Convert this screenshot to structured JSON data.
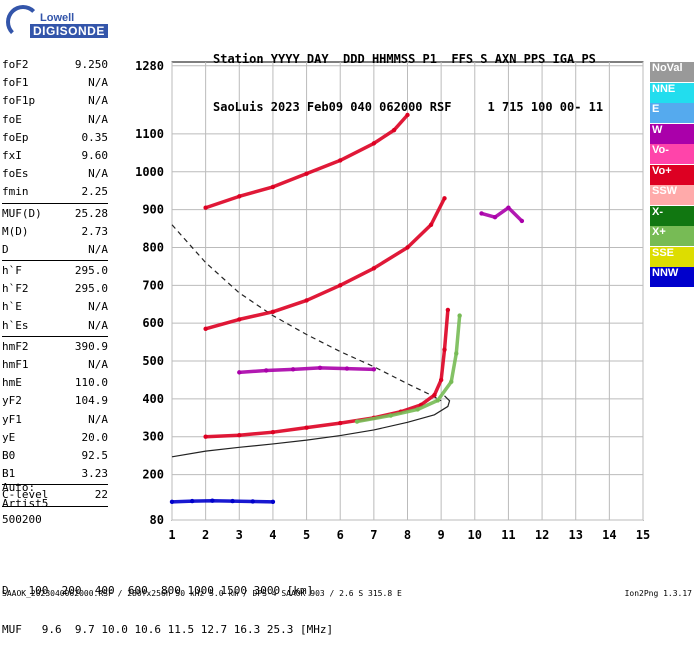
{
  "logo": {
    "line1": "Lowell",
    "line2": "DIGISONDE"
  },
  "header": {
    "line1": "Station YYYY DAY  DDD HHMMSS P1  FFS S AXN PPS IGA PS",
    "line2": "SaoLuis 2023 Feb09 040 062000 RSF     1 715 100 00- 11"
  },
  "params": [
    {
      "label": "foF2",
      "value": "9.250"
    },
    {
      "label": "foF1",
      "value": "N/A"
    },
    {
      "label": "foF1p",
      "value": "N/A"
    },
    {
      "label": "foE",
      "value": "N/A"
    },
    {
      "label": "foEp",
      "value": "0.35"
    },
    {
      "label": "fxI",
      "value": "9.60"
    },
    {
      "label": "foEs",
      "value": "N/A"
    },
    {
      "label": "fmin",
      "value": "2.25"
    },
    {
      "sep": true
    },
    {
      "label": "MUF(D)",
      "value": "25.28"
    },
    {
      "label": "M(D)",
      "value": "2.73"
    },
    {
      "label": "D",
      "value": "N/A"
    },
    {
      "sep": true
    },
    {
      "label": "h`F",
      "value": "295.0"
    },
    {
      "label": "h`F2",
      "value": "295.0"
    },
    {
      "label": "h`E",
      "value": "N/A"
    },
    {
      "label": "h`Es",
      "value": "N/A"
    },
    {
      "sep": true
    },
    {
      "label": "hmF2",
      "value": "390.9"
    },
    {
      "label": "hmF1",
      "value": "N/A"
    },
    {
      "label": "hmE",
      "value": "110.0"
    },
    {
      "label": "yF2",
      "value": "104.9"
    },
    {
      "label": "yF1",
      "value": "N/A"
    },
    {
      "label": "yE",
      "value": "20.0"
    },
    {
      "label": "B0",
      "value": "92.5"
    },
    {
      "label": "B1",
      "value": "3.23"
    },
    {
      "sep": true
    },
    {
      "label": "C-level",
      "value": "22"
    },
    {
      "sep": true
    }
  ],
  "auto": {
    "line1": "Auto:",
    "line2": "Artist5",
    "line3": "500200"
  },
  "legend": [
    {
      "label": "NoVal",
      "color": "#999999"
    },
    {
      "label": "NNE",
      "color": "#22ddee"
    },
    {
      "label": "E",
      "color": "#55aaee"
    },
    {
      "label": "W",
      "color": "#aa00aa"
    },
    {
      "label": "Vo-",
      "color": "#ff44aa"
    },
    {
      "label": "Vo+",
      "color": "#dd0022"
    },
    {
      "label": "SSW",
      "color": "#ffaaaa"
    },
    {
      "label": "X-",
      "color": "#117711"
    },
    {
      "label": "X+",
      "color": "#77bb55"
    },
    {
      "label": "SSE",
      "color": "#dddd00"
    },
    {
      "label": "NNW",
      "color": "#0000cc"
    }
  ],
  "muf_table": {
    "d_label": "D",
    "d_values": "100  200  400  600  800 1000 1500 3000 [km]",
    "muf_label": "MUF",
    "muf_values": "9.6  9.7 10.0 10.6 11.5 12.7 16.3 25.3 [MHz]"
  },
  "footer": "SAAOK_2023040062000.RSF / 280fx256h 50 kHz 5.0 km / DPS-4 SAAOK 903 / 2.6 S 315.8 E",
  "version": "Ion2Png 1.3.17",
  "chart_data": {
    "type": "scatter",
    "title": "",
    "xlabel": "",
    "ylabel": "",
    "xlim": [
      1,
      15
    ],
    "ylim": [
      80,
      1290
    ],
    "x_ticks": [
      1,
      2,
      3,
      4,
      5,
      6,
      7,
      8,
      9,
      10,
      11,
      12,
      13,
      14,
      15
    ],
    "y_ticks": [
      80,
      200,
      300,
      400,
      500,
      600,
      700,
      800,
      900,
      1000,
      1100,
      1280
    ],
    "grid": true,
    "series": [
      {
        "name": "Vo+",
        "color": "#dd0022",
        "x": [
          2.0,
          3.0,
          4.0,
          5.0,
          6.0,
          7.0,
          7.8,
          8.4,
          8.8,
          9.0,
          9.1,
          9.2
        ],
        "y": [
          300,
          304,
          312,
          324,
          336,
          350,
          366,
          384,
          410,
          450,
          530,
          635
        ]
      },
      {
        "name": "X+",
        "color": "#77bb55",
        "x": [
          6.5,
          7.5,
          8.3,
          8.9,
          9.3,
          9.45,
          9.55
        ],
        "y": [
          340,
          356,
          372,
          396,
          445,
          520,
          620
        ]
      },
      {
        "name": "Vo+",
        "color": "#dd0022",
        "x": [
          2.0,
          3.0,
          4.0,
          5.0,
          6.0,
          7.0,
          8.0,
          8.7,
          9.1
        ],
        "y": [
          585,
          610,
          630,
          660,
          700,
          745,
          800,
          860,
          930
        ]
      },
      {
        "name": "Vo+",
        "color": "#dd0022",
        "x": [
          2.0,
          3.0,
          4.0,
          5.0,
          6.0,
          7.0,
          7.6,
          8.0
        ],
        "y": [
          905,
          935,
          960,
          995,
          1030,
          1075,
          1110,
          1150
        ]
      },
      {
        "name": "W",
        "color": "#aa00aa",
        "x": [
          3.0,
          3.8,
          4.6,
          5.4,
          6.2,
          7.0
        ],
        "y": [
          470,
          475,
          478,
          482,
          480,
          478
        ]
      },
      {
        "name": "NNW",
        "color": "#0000cc",
        "x": [
          1.0,
          1.6,
          2.2,
          2.8,
          3.4,
          4.0
        ],
        "y": [
          128,
          130,
          131,
          130,
          129,
          128
        ]
      },
      {
        "name": "W",
        "color": "#aa00aa",
        "x": [
          10.2,
          10.6,
          11.0,
          11.4
        ],
        "y": [
          890,
          880,
          905,
          870
        ]
      }
    ],
    "reference_curves": [
      {
        "style": "dashed",
        "x": [
          1.0,
          2.0,
          3.0,
          4.0,
          5.0,
          6.0,
          7.0,
          8.0,
          8.7,
          9.0
        ],
        "y": [
          860,
          760,
          680,
          620,
          570,
          525,
          485,
          440,
          410,
          395
        ]
      },
      {
        "style": "solid",
        "x": [
          1.0,
          2.0,
          3.0,
          4.0,
          5.0,
          6.0,
          7.0,
          8.0,
          8.8,
          9.2,
          9.25,
          9.1
        ],
        "y": [
          247,
          262,
          272,
          281,
          291,
          303,
          318,
          338,
          358,
          380,
          395,
          408
        ]
      }
    ]
  }
}
